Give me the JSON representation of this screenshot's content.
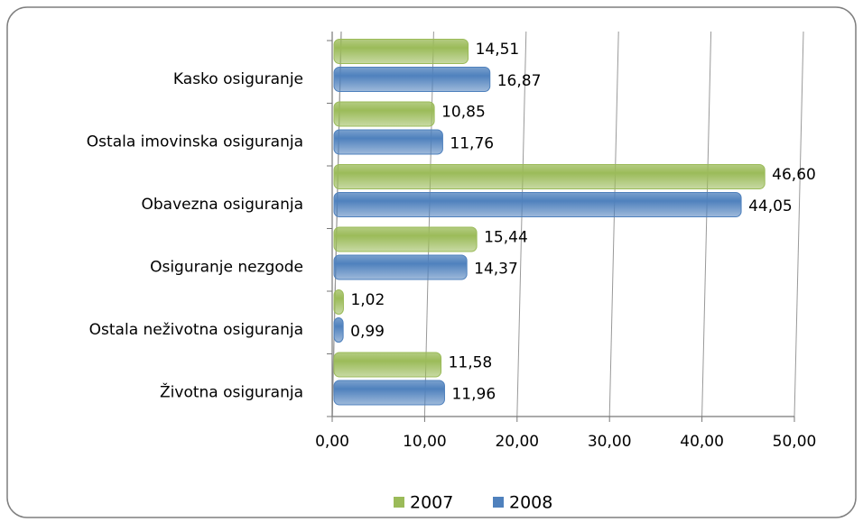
{
  "chart_data": {
    "type": "bar",
    "orientation": "horizontal",
    "categories": [
      "Kasko osiguranje",
      "Ostala imovinska  osiguranja",
      "Obavezna osiguranja",
      "Osiguranje nezgode",
      "Ostala neživotna osiguranja",
      "Životna osiguranja"
    ],
    "series": [
      {
        "name": "2007",
        "color": "#9bbb59",
        "values": [
          14.51,
          10.85,
          46.6,
          15.44,
          1.02,
          11.58
        ],
        "value_labels": [
          "14,51",
          "10,85",
          "46,60",
          "15,44",
          "1,02",
          "11,58"
        ]
      },
      {
        "name": "2008",
        "color": "#4f81bd",
        "values": [
          16.87,
          11.76,
          44.05,
          14.37,
          0.99,
          11.96
        ],
        "value_labels": [
          "16,87",
          "11,76",
          "44,05",
          "14,37",
          "0,99",
          "11,96"
        ]
      }
    ],
    "xlim": [
      0,
      50
    ],
    "xticks": [
      {
        "value": 0,
        "label": "0,00"
      },
      {
        "value": 10,
        "label": "10,00"
      },
      {
        "value": 20,
        "label": "20,00"
      },
      {
        "value": 30,
        "label": "30,00"
      },
      {
        "value": 40,
        "label": "40,00"
      },
      {
        "value": 50,
        "label": "50,00"
      }
    ],
    "grid": true,
    "legend": "bottom"
  }
}
